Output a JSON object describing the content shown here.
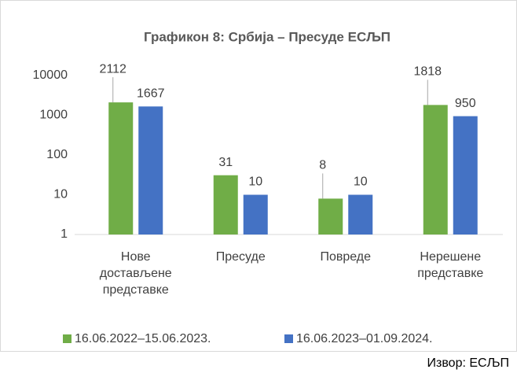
{
  "chart_data": {
    "type": "bar",
    "title": "Графикон 8: Србија – Пресуде ЕСЉП",
    "categories": [
      "Нове достављене представке",
      "Пресуде",
      "Повреде",
      "Нерешене представке"
    ],
    "series": [
      {
        "name": "16.06.2022–15.06.2023.",
        "color": "#70ad47",
        "values": [
          2112,
          31,
          8,
          1818
        ]
      },
      {
        "name": "16.06.2023–01.09.2024.",
        "color": "#4472c4",
        "values": [
          1667,
          10,
          10,
          950
        ]
      }
    ],
    "log_scale": true,
    "ylim": [
      1,
      10000
    ],
    "yticks": [
      1,
      10,
      100,
      1000,
      10000
    ],
    "grid": false,
    "legend": "bottom",
    "source": "Извор: ЕСЉП"
  }
}
